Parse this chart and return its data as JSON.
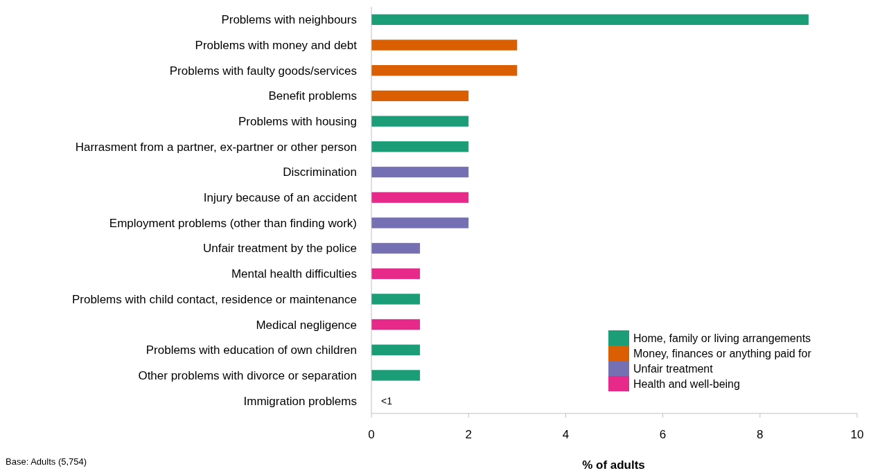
{
  "chart_data": {
    "type": "bar",
    "orientation": "horizontal",
    "stacked": true,
    "xlabel": "% of adults",
    "categories": [
      "Problems with neighbours",
      "Problems with money and debt",
      "Problems with faulty goods/services",
      "Benefit problems",
      "Problems with housing",
      "Harrasment from a partner, ex-partner or other person",
      "Discrimination",
      "Injury because of an accident",
      "Employment problems (other than finding work)",
      "Unfair treatment by the police",
      "Mental health difficulties",
      "Problems with child contact, residence or maintenance",
      "Medical negligence",
      "Problems with education of own children",
      "Other problems with divorce or separation",
      "Immigration problems"
    ],
    "series": [
      {
        "name": "Home, family or living arrangements",
        "color": "#1b9e77",
        "values": [
          9,
          null,
          null,
          null,
          2,
          2,
          null,
          null,
          null,
          null,
          null,
          1,
          null,
          1,
          1,
          null
        ],
        "value_labels": [
          null,
          null,
          null,
          null,
          null,
          null,
          null,
          null,
          null,
          null,
          null,
          null,
          null,
          null,
          null,
          "<1"
        ]
      },
      {
        "name": "Money, finances or anything paid for",
        "color": "#d95f02",
        "values": [
          null,
          3,
          3,
          2,
          null,
          null,
          null,
          null,
          null,
          null,
          null,
          null,
          null,
          null,
          null,
          null
        ]
      },
      {
        "name": "Unfair treatment",
        "color": "#7570b3",
        "values": [
          null,
          null,
          null,
          null,
          null,
          null,
          2,
          null,
          2,
          1,
          null,
          null,
          null,
          null,
          null,
          null
        ]
      },
      {
        "name": "Health and well-being",
        "color": "#e7298a",
        "values": [
          null,
          null,
          null,
          null,
          null,
          null,
          null,
          2,
          null,
          null,
          1,
          null,
          1,
          null,
          null,
          null
        ]
      }
    ],
    "xlim": [
      0,
      10
    ],
    "xticks": [
      0,
      2,
      4,
      6,
      8,
      10
    ],
    "grid": false,
    "legend": "bottom right",
    "annotations": [
      "Base: Adults (5,754)"
    ]
  }
}
